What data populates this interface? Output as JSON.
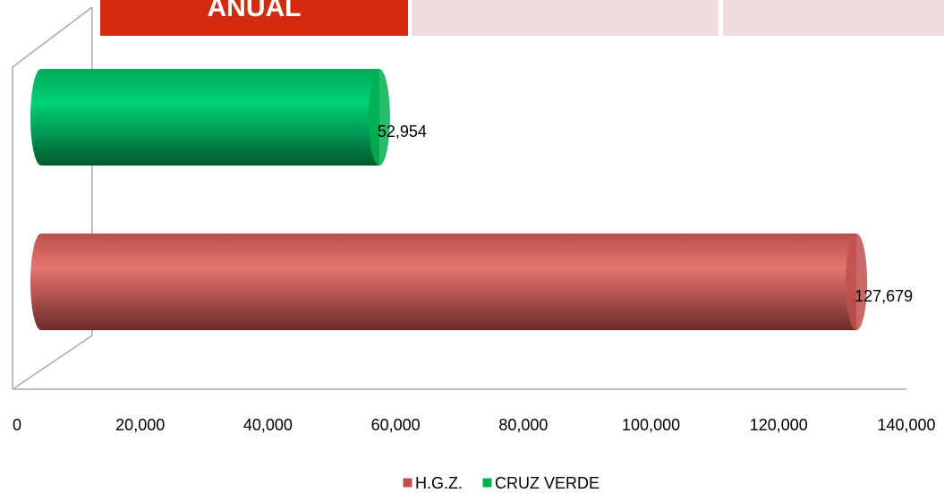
{
  "header": {
    "label": "ANUAL"
  },
  "chart_data": {
    "type": "bar",
    "orientation": "horizontal",
    "categories": [
      null
    ],
    "series": [
      {
        "name": "H.G.Z.",
        "color": "#c0504d",
        "values": [
          127679
        ],
        "value_labels": [
          "127,679"
        ]
      },
      {
        "name": "CRUZ VERDE",
        "color": "#00b050",
        "values": [
          52954
        ],
        "value_labels": [
          "52,954"
        ]
      }
    ],
    "xlim": [
      0,
      140000
    ],
    "xticks": [
      0,
      {
        "value": 20000,
        "label": "20,000"
      },
      {
        "value": 40000,
        "label": "40,000"
      },
      {
        "value": 60000,
        "label": "60,000"
      },
      {
        "value": 80000,
        "label": "80,000"
      },
      {
        "value": 100000,
        "label": "100,000"
      },
      {
        "value": 120000,
        "label": "120,000"
      },
      {
        "value": 140000,
        "label": "140,000"
      }
    ],
    "legend": "bottom",
    "grid": false
  }
}
